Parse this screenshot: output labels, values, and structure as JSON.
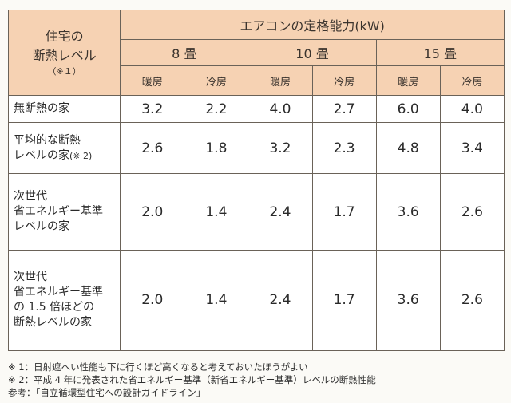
{
  "header": {
    "corner_line1": "住宅の",
    "corner_line2": "断熱レベル",
    "corner_note": "（※１）",
    "capacity_title": "エアコンの定格能力(kW)",
    "sizes": [
      "8 畳",
      "10 畳",
      "15 畳"
    ],
    "modes": [
      "暖房",
      "冷房",
      "暖房",
      "冷房",
      "暖房",
      "冷房"
    ]
  },
  "rows": [
    {
      "label_lines": [
        "無断熱の家"
      ],
      "label_note": "",
      "values": [
        "3.2",
        "2.2",
        "4.0",
        "2.7",
        "6.0",
        "4.0"
      ]
    },
    {
      "label_lines": [
        "平均的な断熱",
        "レベルの家"
      ],
      "label_note": "(※ 2)",
      "values": [
        "2.6",
        "1.8",
        "3.2",
        "2.3",
        "4.8",
        "3.4"
      ]
    },
    {
      "label_lines": [
        "次世代",
        "省エネルギー基準",
        "レベルの家"
      ],
      "label_note": "",
      "values": [
        "2.0",
        "1.4",
        "2.4",
        "1.7",
        "3.6",
        "2.6"
      ]
    },
    {
      "label_lines": [
        "次世代",
        "省エネルギー基準",
        "の 1.5 倍ほどの",
        "断熱レベルの家"
      ],
      "label_note": "",
      "values": [
        "2.0",
        "1.4",
        "2.4",
        "1.7",
        "3.6",
        "2.6"
      ]
    }
  ],
  "footnotes": [
    "※ 1：日射遮へい性能も下に行くほど高くなると考えておいたほうがよい",
    "※ 2：平成 4 年に発表された省エネルギー基準（新省エネルギー基準）レベルの断熱性能",
    "参考：「自立循環型住宅への設計ガイドライン」"
  ],
  "colors": {
    "header_bg": "#f6d2b3",
    "border": "#6a6258"
  }
}
